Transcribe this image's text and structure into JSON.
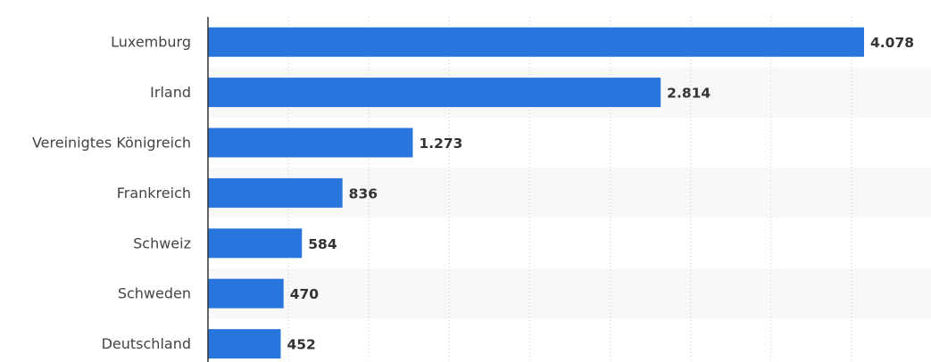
{
  "chart_data": {
    "type": "bar",
    "orientation": "horizontal",
    "categories": [
      "Luxemburg",
      "Irland",
      "Vereinigtes Königreich",
      "Frankreich",
      "Schweiz",
      "Schweden",
      "Deutschland"
    ],
    "values": [
      4078,
      2814,
      1273,
      836,
      584,
      470,
      452
    ],
    "value_labels": [
      "4.078",
      "2.814",
      "1.273",
      "836",
      "584",
      "470",
      "452"
    ],
    "title": "",
    "xlabel": "",
    "ylabel": "",
    "xlim": [
      0,
      4500
    ],
    "grid": true,
    "legend": "none",
    "bar_color": "#2876dd",
    "band_color": "#f8f8f8",
    "grid_color": "#cccccc",
    "axis_color": "#333333"
  }
}
